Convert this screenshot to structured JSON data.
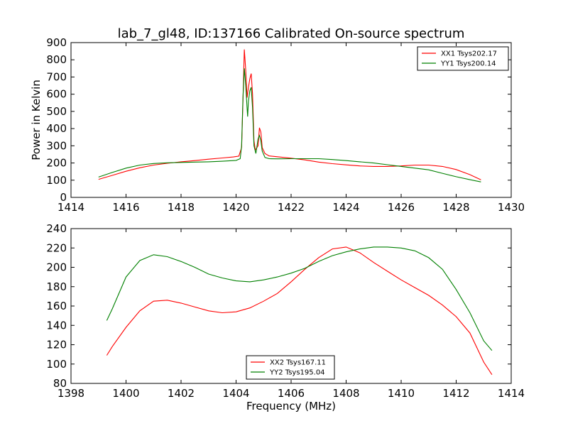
{
  "chart_data": [
    {
      "type": "line",
      "title": "lab_7_gl48, ID:137166 Calibrated On-source spectrum",
      "xlabel": "",
      "ylabel": "Power in Kelvin",
      "xlim": [
        1414,
        1430
      ],
      "ylim": [
        0,
        900
      ],
      "xticks": [
        "1414",
        "1416",
        "1418",
        "1420",
        "1422",
        "1424",
        "1426",
        "1428",
        "1430"
      ],
      "yticks": [
        "0",
        "100",
        "200",
        "300",
        "400",
        "500",
        "600",
        "700",
        "800",
        "900"
      ],
      "grid": false,
      "legend": "top-right",
      "series": [
        {
          "name": "XX1 Tsys202.17",
          "color": "#ff0000",
          "points": [
            [
              1415.0,
              105
            ],
            [
              1415.5,
              128
            ],
            [
              1416.0,
              152
            ],
            [
              1416.5,
              172
            ],
            [
              1417.0,
              188
            ],
            [
              1417.5,
              198
            ],
            [
              1418.0,
              207
            ],
            [
              1418.5,
              214
            ],
            [
              1419.0,
              222
            ],
            [
              1419.5,
              229
            ],
            [
              1419.9,
              235
            ],
            [
              1420.1,
              240
            ],
            [
              1420.2,
              290
            ],
            [
              1420.25,
              560
            ],
            [
              1420.3,
              860
            ],
            [
              1420.35,
              740
            ],
            [
              1420.4,
              580
            ],
            [
              1420.45,
              640
            ],
            [
              1420.5,
              690
            ],
            [
              1420.55,
              720
            ],
            [
              1420.6,
              600
            ],
            [
              1420.65,
              330
            ],
            [
              1420.7,
              275
            ],
            [
              1420.8,
              300
            ],
            [
              1420.85,
              405
            ],
            [
              1420.9,
              380
            ],
            [
              1420.95,
              290
            ],
            [
              1421.05,
              255
            ],
            [
              1421.2,
              241
            ],
            [
              1421.5,
              236
            ],
            [
              1422.0,
              228
            ],
            [
              1422.5,
              218
            ],
            [
              1423.0,
              205
            ],
            [
              1423.5,
              196
            ],
            [
              1424.0,
              189
            ],
            [
              1424.5,
              183
            ],
            [
              1425.0,
              180
            ],
            [
              1425.5,
              180
            ],
            [
              1426.0,
              183
            ],
            [
              1426.5,
              188
            ],
            [
              1427.0,
              188
            ],
            [
              1427.5,
              180
            ],
            [
              1428.0,
              162
            ],
            [
              1428.5,
              132
            ],
            [
              1428.9,
              102
            ]
          ]
        },
        {
          "name": "YY1 Tsys200.14",
          "color": "#008000",
          "points": [
            [
              1415.0,
              118
            ],
            [
              1415.5,
              145
            ],
            [
              1416.0,
              170
            ],
            [
              1416.5,
              188
            ],
            [
              1417.0,
              197
            ],
            [
              1417.5,
              201
            ],
            [
              1418.0,
              203
            ],
            [
              1418.5,
              205
            ],
            [
              1419.0,
              207
            ],
            [
              1419.5,
              210
            ],
            [
              1420.0,
              215
            ],
            [
              1420.15,
              225
            ],
            [
              1420.2,
              300
            ],
            [
              1420.25,
              580
            ],
            [
              1420.3,
              750
            ],
            [
              1420.35,
              650
            ],
            [
              1420.4,
              520
            ],
            [
              1420.42,
              470
            ],
            [
              1420.45,
              560
            ],
            [
              1420.5,
              620
            ],
            [
              1420.55,
              640
            ],
            [
              1420.6,
              520
            ],
            [
              1420.65,
              300
            ],
            [
              1420.72,
              255
            ],
            [
              1420.8,
              340
            ],
            [
              1420.85,
              360
            ],
            [
              1420.9,
              330
            ],
            [
              1420.95,
              270
            ],
            [
              1421.05,
              232
            ],
            [
              1421.2,
              225
            ],
            [
              1421.5,
              224
            ],
            [
              1422.0,
              225
            ],
            [
              1422.5,
              225
            ],
            [
              1423.0,
              225
            ],
            [
              1423.5,
              220
            ],
            [
              1424.0,
              214
            ],
            [
              1424.5,
              207
            ],
            [
              1425.0,
              200
            ],
            [
              1425.5,
              190
            ],
            [
              1426.0,
              180
            ],
            [
              1426.5,
              170
            ],
            [
              1427.0,
              160
            ],
            [
              1427.5,
              140
            ],
            [
              1428.0,
              120
            ],
            [
              1428.5,
              103
            ],
            [
              1428.9,
              90
            ]
          ]
        }
      ]
    },
    {
      "type": "line",
      "title": "",
      "xlabel": "Frequency (MHz)",
      "ylabel": "",
      "xlim": [
        1398,
        1414
      ],
      "ylim": [
        80,
        240
      ],
      "xticks": [
        "1398",
        "1400",
        "1402",
        "1404",
        "1406",
        "1408",
        "1410",
        "1412",
        "1414"
      ],
      "yticks": [
        "80",
        "100",
        "120",
        "140",
        "160",
        "180",
        "200",
        "220",
        "240"
      ],
      "grid": false,
      "legend": "bottom-center",
      "series": [
        {
          "name": "XX2 Tsys167.11",
          "color": "#ff0000",
          "points": [
            [
              1399.3,
              109
            ],
            [
              1399.5,
              118
            ],
            [
              1400.0,
              138
            ],
            [
              1400.5,
              155
            ],
            [
              1401.0,
              165
            ],
            [
              1401.5,
              166
            ],
            [
              1402.0,
              163
            ],
            [
              1402.5,
              159
            ],
            [
              1403.0,
              155
            ],
            [
              1403.5,
              153
            ],
            [
              1404.0,
              154
            ],
            [
              1404.5,
              158
            ],
            [
              1405.0,
              165
            ],
            [
              1405.5,
              173
            ],
            [
              1406.0,
              185
            ],
            [
              1406.5,
              198
            ],
            [
              1407.0,
              210
            ],
            [
              1407.5,
              219
            ],
            [
              1408.0,
              221
            ],
            [
              1408.5,
              215
            ],
            [
              1409.0,
              205
            ],
            [
              1409.5,
              196
            ],
            [
              1410.0,
              187
            ],
            [
              1410.5,
              179
            ],
            [
              1411.0,
              171
            ],
            [
              1411.5,
              161
            ],
            [
              1412.0,
              149
            ],
            [
              1412.5,
              132
            ],
            [
              1413.0,
              102
            ],
            [
              1413.3,
              89
            ]
          ]
        },
        {
          "name": "YY2 Tsys195.04",
          "color": "#008000",
          "points": [
            [
              1399.3,
              145
            ],
            [
              1399.5,
              157
            ],
            [
              1400.0,
              190
            ],
            [
              1400.5,
              207
            ],
            [
              1401.0,
              213
            ],
            [
              1401.5,
              211
            ],
            [
              1402.0,
              206
            ],
            [
              1402.5,
              200
            ],
            [
              1403.0,
              193
            ],
            [
              1403.5,
              189
            ],
            [
              1404.0,
              186
            ],
            [
              1404.5,
              185
            ],
            [
              1405.0,
              187
            ],
            [
              1405.5,
              190
            ],
            [
              1406.0,
              194
            ],
            [
              1406.5,
              199
            ],
            [
              1407.0,
              206
            ],
            [
              1407.5,
              212
            ],
            [
              1408.0,
              216
            ],
            [
              1408.5,
              219
            ],
            [
              1409.0,
              221
            ],
            [
              1409.5,
              221
            ],
            [
              1410.0,
              220
            ],
            [
              1410.5,
              217
            ],
            [
              1411.0,
              210
            ],
            [
              1411.5,
              198
            ],
            [
              1412.0,
              177
            ],
            [
              1412.5,
              153
            ],
            [
              1413.0,
              124
            ],
            [
              1413.3,
              114
            ]
          ]
        }
      ]
    }
  ]
}
